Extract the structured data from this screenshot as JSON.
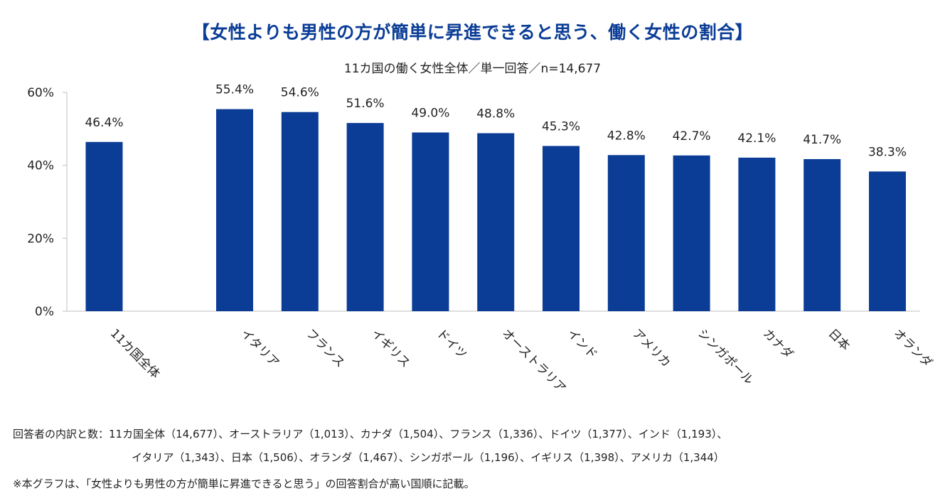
{
  "chart_data": {
    "type": "bar",
    "title": "【女性よりも男性の方が簡単に昇進できると思う、働く女性の割合】",
    "subtitle": "11カ国の働く女性全体／単一回答／n=14,677",
    "categories": [
      "11カ国全体",
      "イタリア",
      "フランス",
      "イギリス",
      "ドイツ",
      "オーストラリア",
      "インド",
      "アメリカ",
      "シンガポール",
      "カナダ",
      "日本",
      "オランダ"
    ],
    "values": [
      46.4,
      55.4,
      54.6,
      51.6,
      49.0,
      48.8,
      45.3,
      42.8,
      42.7,
      42.1,
      41.7,
      38.3
    ],
    "data_labels": [
      "46.4%",
      "55.4%",
      "54.6%",
      "51.6%",
      "49.0%",
      "48.8%",
      "45.3%",
      "42.8%",
      "42.7%",
      "42.1%",
      "41.7%",
      "38.3%"
    ],
    "yticks": [
      0,
      20,
      40,
      60
    ],
    "ytick_labels": [
      "0%",
      "20%",
      "40%",
      "60%"
    ],
    "ylim": [
      0,
      60
    ],
    "xlabel": "",
    "ylabel": "",
    "grid": false,
    "bar_color": "#0b3d96"
  },
  "notes": {
    "respondents_line1": "回答者の内訳と数：11カ国全体（14,677）、オーストラリア（1,013）、カナダ（1,504）、フランス（1,336）、ドイツ（1,377）、インド（1,193）、",
    "respondents_line2": "イタリア（1,343）、日本（1,506）、オランダ（1,467）、シンガポール（1,196）、イギリス（1,398）、アメリカ（1,344）",
    "footnote": "※本グラフは、「女性よりも男性の方が簡単に昇進できると思う」の回答割合が高い国順に記載。"
  },
  "colors": {
    "title": "#0b3d96",
    "bar": "#0b3d96",
    "axis": "#bfbfbf"
  }
}
